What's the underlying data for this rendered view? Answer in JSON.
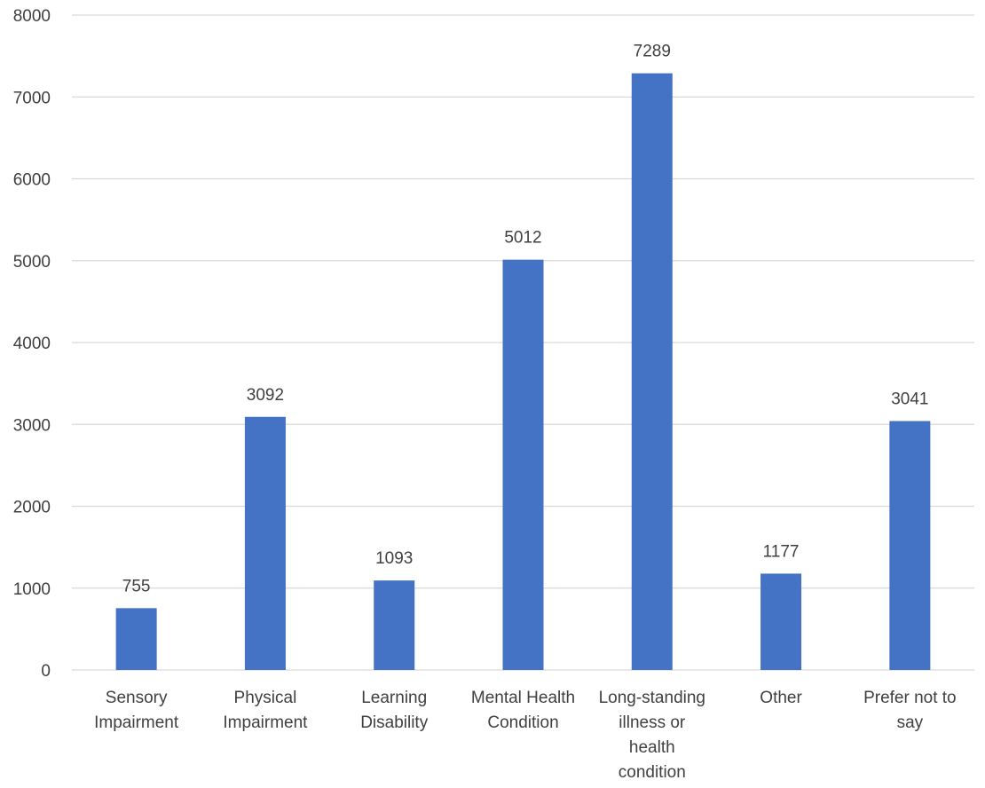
{
  "chart_data": {
    "type": "bar",
    "title": "",
    "xlabel": "",
    "ylabel": "",
    "categories": [
      [
        "Sensory",
        "Impairment"
      ],
      [
        "Physical",
        "Impairment"
      ],
      [
        "Learning",
        "Disability"
      ],
      [
        "Mental Health",
        "Condition"
      ],
      [
        "Long-standing",
        "illness or",
        "health",
        "condition"
      ],
      [
        "Other"
      ],
      [
        "Prefer not to",
        "say"
      ]
    ],
    "values": [
      755,
      3092,
      1093,
      5012,
      7289,
      1177,
      3041
    ],
    "ylim": [
      0,
      8000
    ],
    "yticks": [
      0,
      1000,
      2000,
      3000,
      4000,
      5000,
      6000,
      7000,
      8000
    ],
    "grid": true,
    "legend": "none",
    "bar_color": "#4472c4"
  }
}
